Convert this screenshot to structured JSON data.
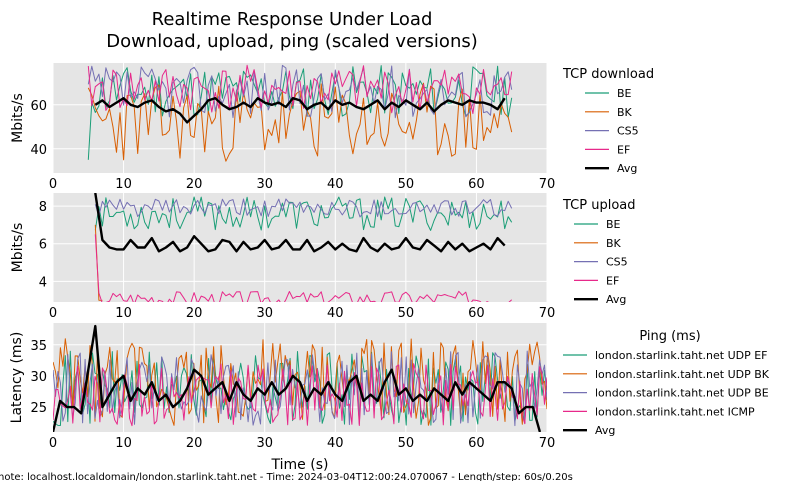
{
  "figure": {
    "title_line1": "Realtime Response Under Load",
    "title_line2": "Download, upload, ping (scaled versions)",
    "xlabel": "Time (s)",
    "footer": "note: localhost.localdomain/london.starlink.taht.net - Time: 2024-03-04T12:00:24.070067 - Length/step: 60s/0.20s"
  },
  "colors": {
    "BE": "#1b9e77",
    "BK": "#d95f02",
    "CS5": "#7570b3",
    "EF": "#e7298a",
    "Avg": "#000000",
    "plot_bg": "#e5e5e5",
    "grid": "#ffffff"
  },
  "chart_data": [
    {
      "type": "line",
      "title": "TCP download",
      "ylabel": "Mbits/s",
      "xlim": [
        0,
        70
      ],
      "ylim": [
        29,
        79
      ],
      "xticks": [
        0,
        10,
        20,
        30,
        40,
        50,
        60,
        70
      ],
      "yticks": [
        40,
        60
      ],
      "legend_title": "TCP download",
      "legend_position": "right",
      "series": [
        {
          "name": "BE",
          "x_range": [
            5,
            65
          ],
          "mean": 66,
          "amp": 12,
          "start": 35,
          "seed": 11
        },
        {
          "name": "BK",
          "x_range": [
            5,
            65
          ],
          "mean": 52,
          "amp": 18,
          "seed": 23
        },
        {
          "name": "CS5",
          "x_range": [
            5,
            65
          ],
          "mean": 66,
          "amp": 12,
          "seed": 37
        },
        {
          "name": "EF",
          "x_range": [
            5,
            65
          ],
          "mean": 67,
          "amp": 11,
          "seed": 41
        },
        {
          "name": "Avg",
          "x": [
            6,
            7,
            8,
            9,
            10,
            11,
            12,
            13,
            14,
            15,
            16,
            17,
            18,
            19,
            20,
            21,
            22,
            23,
            24,
            25,
            26,
            27,
            28,
            29,
            30,
            31,
            32,
            33,
            34,
            35,
            36,
            37,
            38,
            39,
            40,
            41,
            42,
            43,
            44,
            45,
            46,
            47,
            48,
            49,
            50,
            51,
            52,
            53,
            54,
            55,
            56,
            57,
            58,
            59,
            60,
            61,
            62,
            63,
            64
          ],
          "y": [
            60,
            62,
            59,
            61,
            63,
            60,
            59,
            61,
            62,
            59,
            57,
            58,
            56,
            52,
            55,
            58,
            62,
            63,
            60,
            58,
            59,
            61,
            59,
            63,
            61,
            60,
            61,
            59,
            63,
            62,
            58,
            60,
            61,
            58,
            62,
            60,
            61,
            59,
            58,
            60,
            62,
            58,
            61,
            59,
            62,
            60,
            58,
            61,
            57,
            60,
            62,
            61,
            60,
            62,
            61,
            61,
            60,
            58,
            63
          ]
        }
      ]
    },
    {
      "type": "line",
      "title": "TCP upload",
      "ylabel": "Mbits/s",
      "xlim": [
        0,
        70
      ],
      "ylim": [
        2.9,
        8.7
      ],
      "xticks": [
        0,
        10,
        20,
        30,
        40,
        50,
        60,
        70
      ],
      "yticks": [
        4,
        6,
        8
      ],
      "legend_title": "TCP upload",
      "legend_position": "right",
      "series": [
        {
          "name": "BE",
          "x_range": [
            6,
            65
          ],
          "mean": 7.6,
          "amp": 0.9,
          "seed": 53
        },
        {
          "name": "BK",
          "x_range": [
            6,
            7
          ],
          "mean": 3.0,
          "amp": 0.1,
          "start": 7.0,
          "seed": 59
        },
        {
          "name": "CS5",
          "x_range": [
            6,
            65
          ],
          "mean": 7.9,
          "amp": 0.5,
          "seed": 61
        },
        {
          "name": "EF",
          "x_range": [
            6,
            65
          ],
          "mean": 3.1,
          "amp": 0.4,
          "start": 6.5,
          "seed": 67
        },
        {
          "name": "Avg",
          "x": [
            6,
            7,
            8,
            9,
            10,
            11,
            12,
            13,
            14,
            15,
            16,
            17,
            18,
            19,
            20,
            21,
            22,
            23,
            24,
            25,
            26,
            27,
            28,
            29,
            30,
            31,
            32,
            33,
            34,
            35,
            36,
            37,
            38,
            39,
            40,
            41,
            42,
            43,
            44,
            45,
            46,
            47,
            48,
            49,
            50,
            51,
            52,
            53,
            54,
            55,
            56,
            57,
            58,
            59,
            60,
            61,
            62,
            63,
            64
          ],
          "y": [
            8.7,
            6.2,
            5.8,
            5.7,
            5.7,
            6.2,
            5.8,
            5.8,
            6.3,
            5.6,
            5.8,
            6.1,
            5.6,
            5.8,
            6.4,
            6.0,
            5.6,
            5.7,
            6.2,
            6.1,
            5.6,
            6.1,
            5.7,
            5.8,
            6.2,
            5.7,
            5.8,
            6.2,
            5.7,
            5.7,
            6.2,
            5.6,
            5.8,
            6.1,
            5.7,
            6.0,
            5.7,
            5.6,
            6.3,
            5.8,
            5.6,
            6.0,
            5.7,
            5.8,
            6.3,
            5.8,
            5.7,
            6.2,
            5.9,
            5.6,
            6.1,
            5.7,
            6.0,
            5.6,
            5.8,
            6.0,
            5.7,
            6.3,
            5.9
          ]
        }
      ]
    },
    {
      "type": "line",
      "title": "Ping (ms)",
      "ylabel": "Latency (ms)",
      "xlim": [
        0,
        70
      ],
      "ylim": [
        21,
        38.5
      ],
      "xticks": [
        0,
        10,
        20,
        30,
        40,
        50,
        60,
        70
      ],
      "yticks": [
        25,
        30,
        35
      ],
      "legend_title": "Ping (ms)",
      "legend_position": "right",
      "series": [
        {
          "name": "london.starlink.taht.net UDP EF",
          "color_key": "BE",
          "x_range": [
            0,
            70
          ],
          "mean": 28,
          "amp": 6,
          "seed": 71
        },
        {
          "name": "london.starlink.taht.net UDP BK",
          "color_key": "BK",
          "x_range": [
            0,
            70
          ],
          "mean": 29,
          "amp": 7,
          "seed": 73
        },
        {
          "name": "london.starlink.taht.net UDP BE",
          "color_key": "CS5",
          "x_range": [
            0,
            70
          ],
          "mean": 28,
          "amp": 6,
          "seed": 79
        },
        {
          "name": "london.starlink.taht.net ICMP",
          "color_key": "EF",
          "x_range": [
            0,
            70
          ],
          "mean": 27,
          "amp": 5,
          "seed": 83
        },
        {
          "name": "Avg",
          "x": [
            0,
            1,
            2,
            3,
            4,
            5,
            6,
            7,
            8,
            9,
            10,
            11,
            12,
            13,
            14,
            15,
            16,
            17,
            18,
            19,
            20,
            21,
            22,
            23,
            24,
            25,
            26,
            27,
            28,
            29,
            30,
            31,
            32,
            33,
            34,
            35,
            36,
            37,
            38,
            39,
            40,
            41,
            42,
            43,
            44,
            45,
            46,
            47,
            48,
            49,
            50,
            51,
            52,
            53,
            54,
            55,
            56,
            57,
            58,
            59,
            60,
            61,
            62,
            63,
            64,
            65,
            66,
            67,
            68,
            69
          ],
          "y": [
            21,
            26,
            25,
            25,
            24,
            31,
            38,
            25,
            27,
            29,
            30,
            26,
            28,
            27,
            29,
            26,
            27,
            25,
            26,
            28,
            31,
            30,
            27,
            28,
            29,
            26,
            29,
            27,
            26,
            28,
            27,
            29,
            27,
            28,
            30,
            29,
            26,
            28,
            27,
            29,
            27,
            26,
            29,
            30,
            26,
            27,
            26,
            29,
            31,
            27,
            28,
            26,
            27,
            26,
            28,
            27,
            26,
            29,
            27,
            29,
            28,
            27,
            26,
            29,
            29,
            28,
            24,
            25,
            25,
            21
          ]
        }
      ]
    }
  ]
}
